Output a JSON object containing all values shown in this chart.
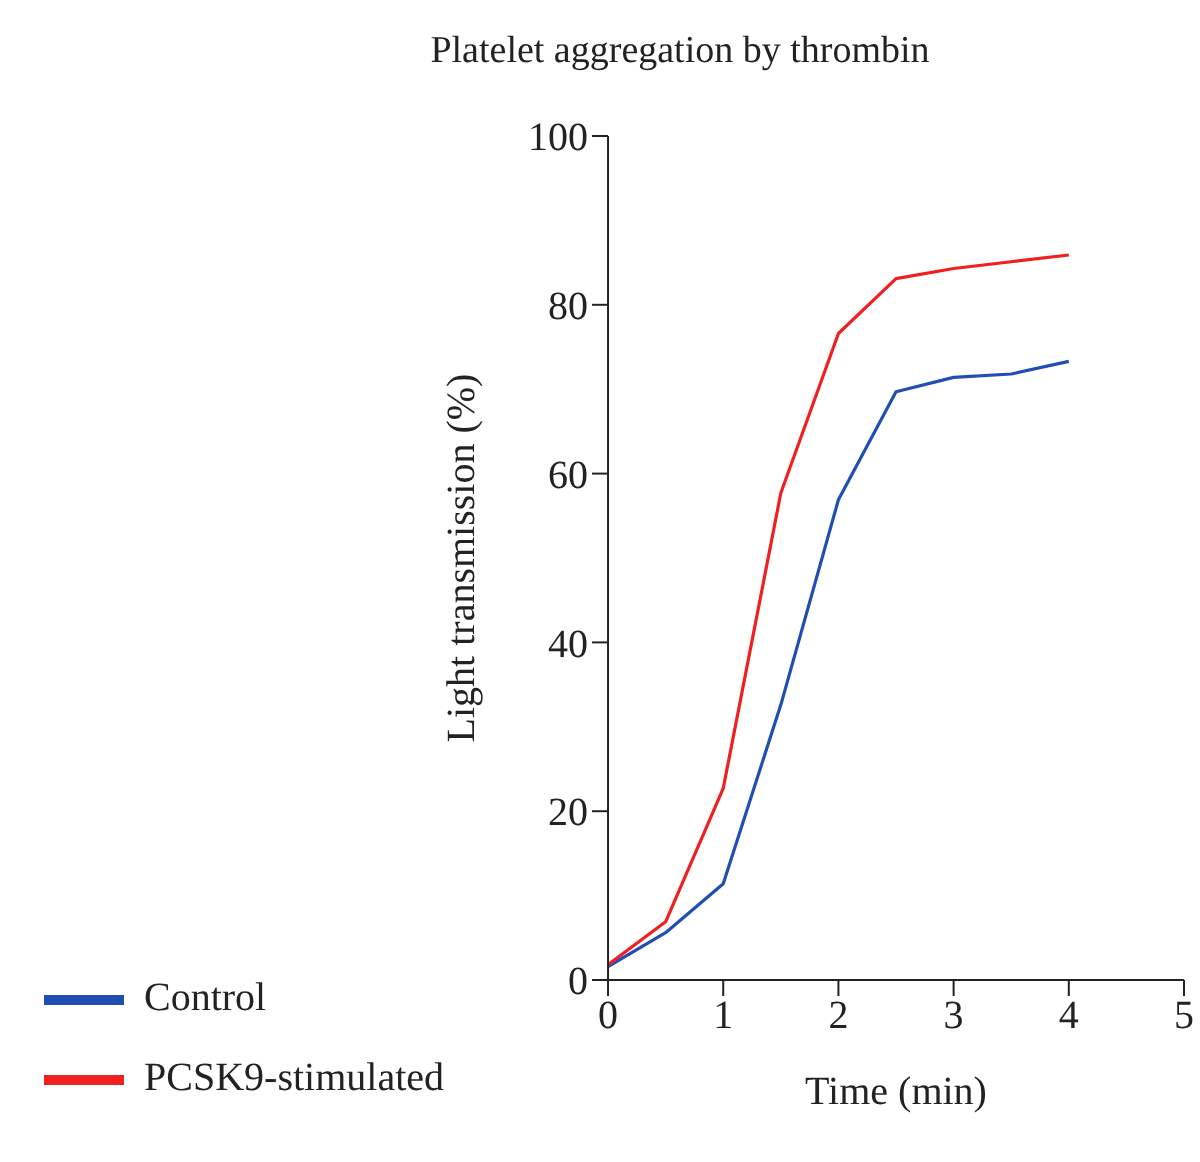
{
  "chart_data": {
    "type": "line",
    "title": "Platelet aggregation by thrombin",
    "xlabel": "Time (min)",
    "ylabel": "Light transmission (%)",
    "x": [
      0,
      0.5,
      1,
      1.5,
      2,
      2.5,
      3,
      3.5,
      4
    ],
    "series": [
      {
        "name": "Control",
        "color": "#1f4fb4",
        "values": [
          1.6,
          5.6,
          11.4,
          32.6,
          56.9,
          69.7,
          71.4,
          71.8,
          73.3
        ]
      },
      {
        "name": "PCSK9-stimulated",
        "color": "#f02020",
        "values": [
          1.8,
          6.9,
          22.7,
          57.7,
          76.6,
          83.1,
          84.3,
          85.1,
          85.9
        ]
      }
    ],
    "xlim": [
      0,
      5
    ],
    "xticks": [
      0,
      1,
      2,
      3,
      4,
      5
    ],
    "ylim": [
      0,
      100
    ],
    "yticks": [
      0,
      20,
      40,
      60,
      80,
      100
    ],
    "grid": false,
    "legend": "bottom left",
    "marker": "none",
    "line_style": "solid"
  }
}
